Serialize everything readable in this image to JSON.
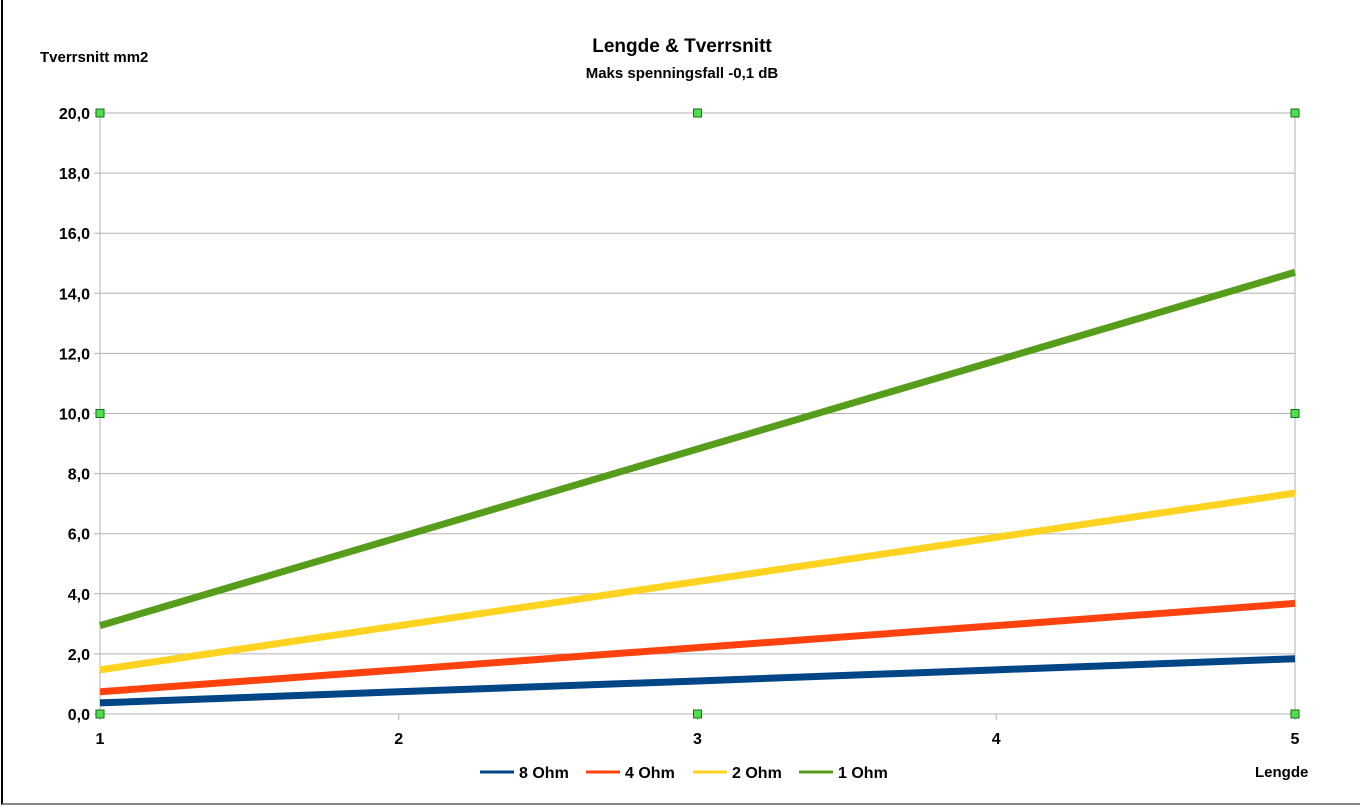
{
  "chart_data": {
    "type": "line",
    "title": "Lengde & Tverrsnitt",
    "subtitle": "Maks spenningsfall -0,1 dB",
    "xlabel": "Lengde",
    "ylabel": "Tverrsnitt mm2",
    "x": [
      1,
      2,
      3,
      4,
      5
    ],
    "xticks": [
      "1",
      "2",
      "3",
      "4",
      "5"
    ],
    "ylim": [
      0,
      20
    ],
    "yticks": [
      "0,0",
      "2,0",
      "4,0",
      "6,0",
      "8,0",
      "10,0",
      "12,0",
      "14,0",
      "16,0",
      "18,0",
      "20,0"
    ],
    "grid": true,
    "legend": "bottom",
    "series": [
      {
        "name": "8 Ohm",
        "color": "#004586",
        "values": [
          0.37,
          0.74,
          1.1,
          1.47,
          1.84
        ]
      },
      {
        "name": "4 Ohm",
        "color": "#ff420e",
        "values": [
          0.74,
          1.47,
          2.21,
          2.94,
          3.68
        ]
      },
      {
        "name": "2 Ohm",
        "color": "#ffd320",
        "values": [
          1.47,
          2.94,
          4.41,
          5.88,
          7.35
        ]
      },
      {
        "name": "1 Ohm",
        "color": "#579d1c",
        "values": [
          2.94,
          5.88,
          8.82,
          11.76,
          14.7
        ]
      }
    ]
  }
}
